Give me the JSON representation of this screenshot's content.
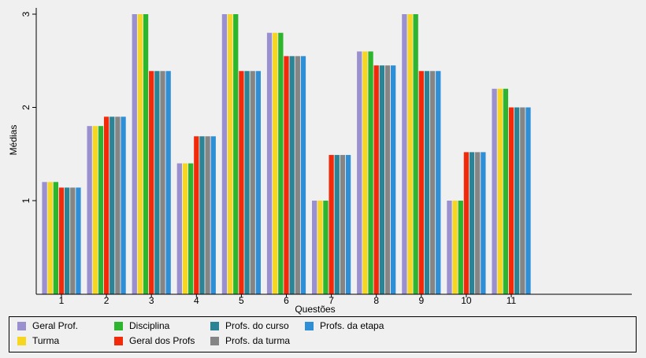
{
  "chart_data": {
    "type": "bar",
    "xlabel": "Questões",
    "ylabel": "Médias",
    "ylim": [
      0,
      3
    ],
    "yticks": [
      "1",
      "2",
      "3"
    ],
    "categories": [
      "1",
      "2",
      "3",
      "4",
      "5",
      "6",
      "7",
      "8",
      "9",
      "10",
      "11"
    ],
    "legend_position": "bottom",
    "grid": false,
    "series": [
      {
        "name": "Geral Prof.",
        "color": "#9a8fcf",
        "values": [
          1.2,
          1.8,
          3.0,
          1.4,
          3.0,
          2.8,
          1.0,
          2.6,
          3.0,
          1.0,
          2.2
        ]
      },
      {
        "name": "Turma",
        "color": "#f7d622",
        "values": [
          1.2,
          1.8,
          3.0,
          1.4,
          3.0,
          2.8,
          1.0,
          2.6,
          3.0,
          1.0,
          2.2
        ]
      },
      {
        "name": "Disciplina",
        "color": "#2db52d",
        "values": [
          1.2,
          1.8,
          3.0,
          1.4,
          3.0,
          2.8,
          1.0,
          2.6,
          3.0,
          1.0,
          2.2
        ]
      },
      {
        "name": "Geral dos Profs",
        "color": "#f22a0a",
        "values": [
          1.14,
          1.9,
          2.39,
          1.69,
          2.39,
          2.55,
          1.49,
          2.45,
          2.39,
          1.52,
          2.0
        ]
      },
      {
        "name": "Profs. do curso",
        "color": "#2a8496",
        "values": [
          1.14,
          1.9,
          2.39,
          1.69,
          2.39,
          2.55,
          1.49,
          2.45,
          2.39,
          1.52,
          2.0
        ]
      },
      {
        "name": "Profs. da turma",
        "color": "#858585",
        "values": [
          1.14,
          1.9,
          2.39,
          1.69,
          2.39,
          2.55,
          1.49,
          2.45,
          2.39,
          1.52,
          2.0
        ]
      },
      {
        "name": "Profs. da etapa",
        "color": "#2e8ed6",
        "values": [
          1.14,
          1.9,
          2.39,
          1.69,
          2.39,
          2.55,
          1.49,
          2.45,
          2.39,
          1.52,
          2.0
        ]
      }
    ]
  }
}
